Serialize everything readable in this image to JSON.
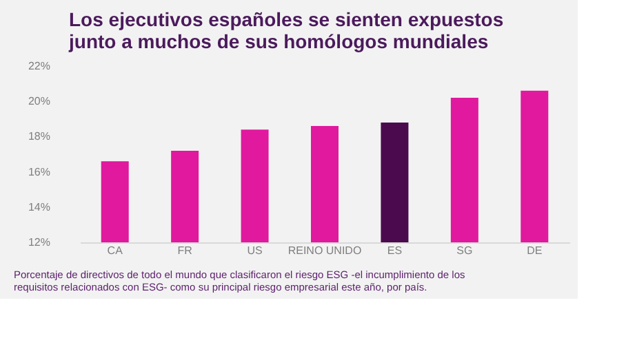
{
  "chart_data": {
    "type": "bar",
    "title": "Los ejecutivos españoles se sienten expuestos junto a muchos de sus homólogos mundiales",
    "categories": [
      "CA",
      "FR",
      "US",
      "REINO UNIDO",
      "ES",
      "SG",
      "DE"
    ],
    "values": [
      16.6,
      17.2,
      18.4,
      18.6,
      18.8,
      20.2,
      20.6
    ],
    "colors": [
      "#e0199e",
      "#e0199e",
      "#e0199e",
      "#e0199e",
      "#4b0a4e",
      "#e0199e",
      "#e0199e"
    ],
    "ylim": [
      12,
      22
    ],
    "yticks": [
      {
        "value": 12,
        "label": "12%"
      },
      {
        "value": 14,
        "label": "14%"
      },
      {
        "value": 16,
        "label": "16%"
      },
      {
        "value": 18,
        "label": "18%"
      },
      {
        "value": 20,
        "label": "20%"
      },
      {
        "value": 22,
        "label": "22%"
      }
    ],
    "grid": false,
    "annotations": [
      "Porcentaje de directivos de todo el mundo que clasificaron el riesgo ESG -el incumplimiento de los requisitos relacionados con ESG- como su principal riesgo empresarial este año, por país."
    ]
  }
}
